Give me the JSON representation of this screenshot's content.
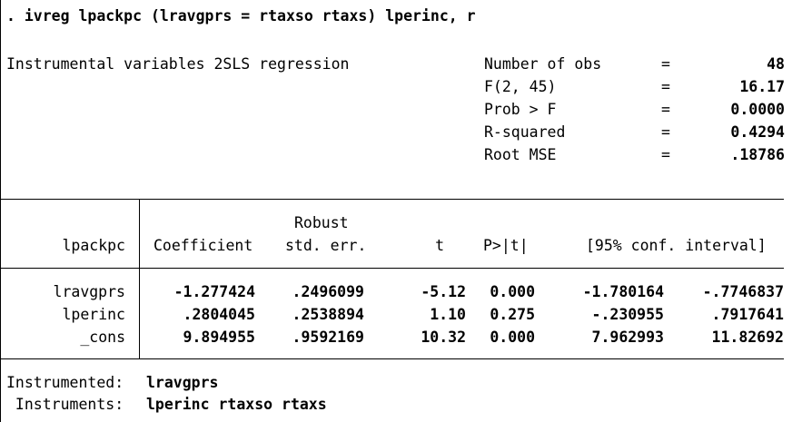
{
  "command": ". ivreg lpackpc (lravgprs = rtaxso rtaxs) lperinc, r",
  "title": "Instrumental variables 2SLS regression",
  "stats": [
    {
      "label": "Number of obs",
      "eq": "=",
      "value": "48"
    },
    {
      "label": "F(2, 45)",
      "eq": "=",
      "value": "16.17"
    },
    {
      "label": "Prob > F",
      "eq": "=",
      "value": "0.0000"
    },
    {
      "label": "R-squared",
      "eq": "=",
      "value": "0.4294"
    },
    {
      "label": "Root MSE",
      "eq": "=",
      "value": ".18786"
    }
  ],
  "table": {
    "header_top": {
      "se": "Robust"
    },
    "header": {
      "var": "lpackpc",
      "coef": "Coefficient",
      "se": "std. err.",
      "t": "t",
      "p": "P>|t|",
      "ci": "[95% conf. interval]"
    },
    "rows": [
      {
        "var": "lravgprs",
        "coef": "-1.277424",
        "se": ".2496099",
        "t": "-5.12",
        "p": "0.000",
        "lo": "-1.780164",
        "hi": "-.7746837"
      },
      {
        "var": "lperinc",
        "coef": ".2804045",
        "se": ".2538894",
        "t": "1.10",
        "p": "0.275",
        "lo": "-.230955",
        "hi": ".7917641"
      },
      {
        "var": "_cons",
        "coef": "9.894955",
        "se": ".9592169",
        "t": "10.32",
        "p": "0.000",
        "lo": "7.962993",
        "hi": "11.82692"
      }
    ]
  },
  "footer": {
    "instrumented_label": "Instrumented:",
    "instrumented_value": "lravgprs",
    "instruments_label": " Instruments:",
    "instruments_value": "lperinc rtaxso rtaxs"
  }
}
